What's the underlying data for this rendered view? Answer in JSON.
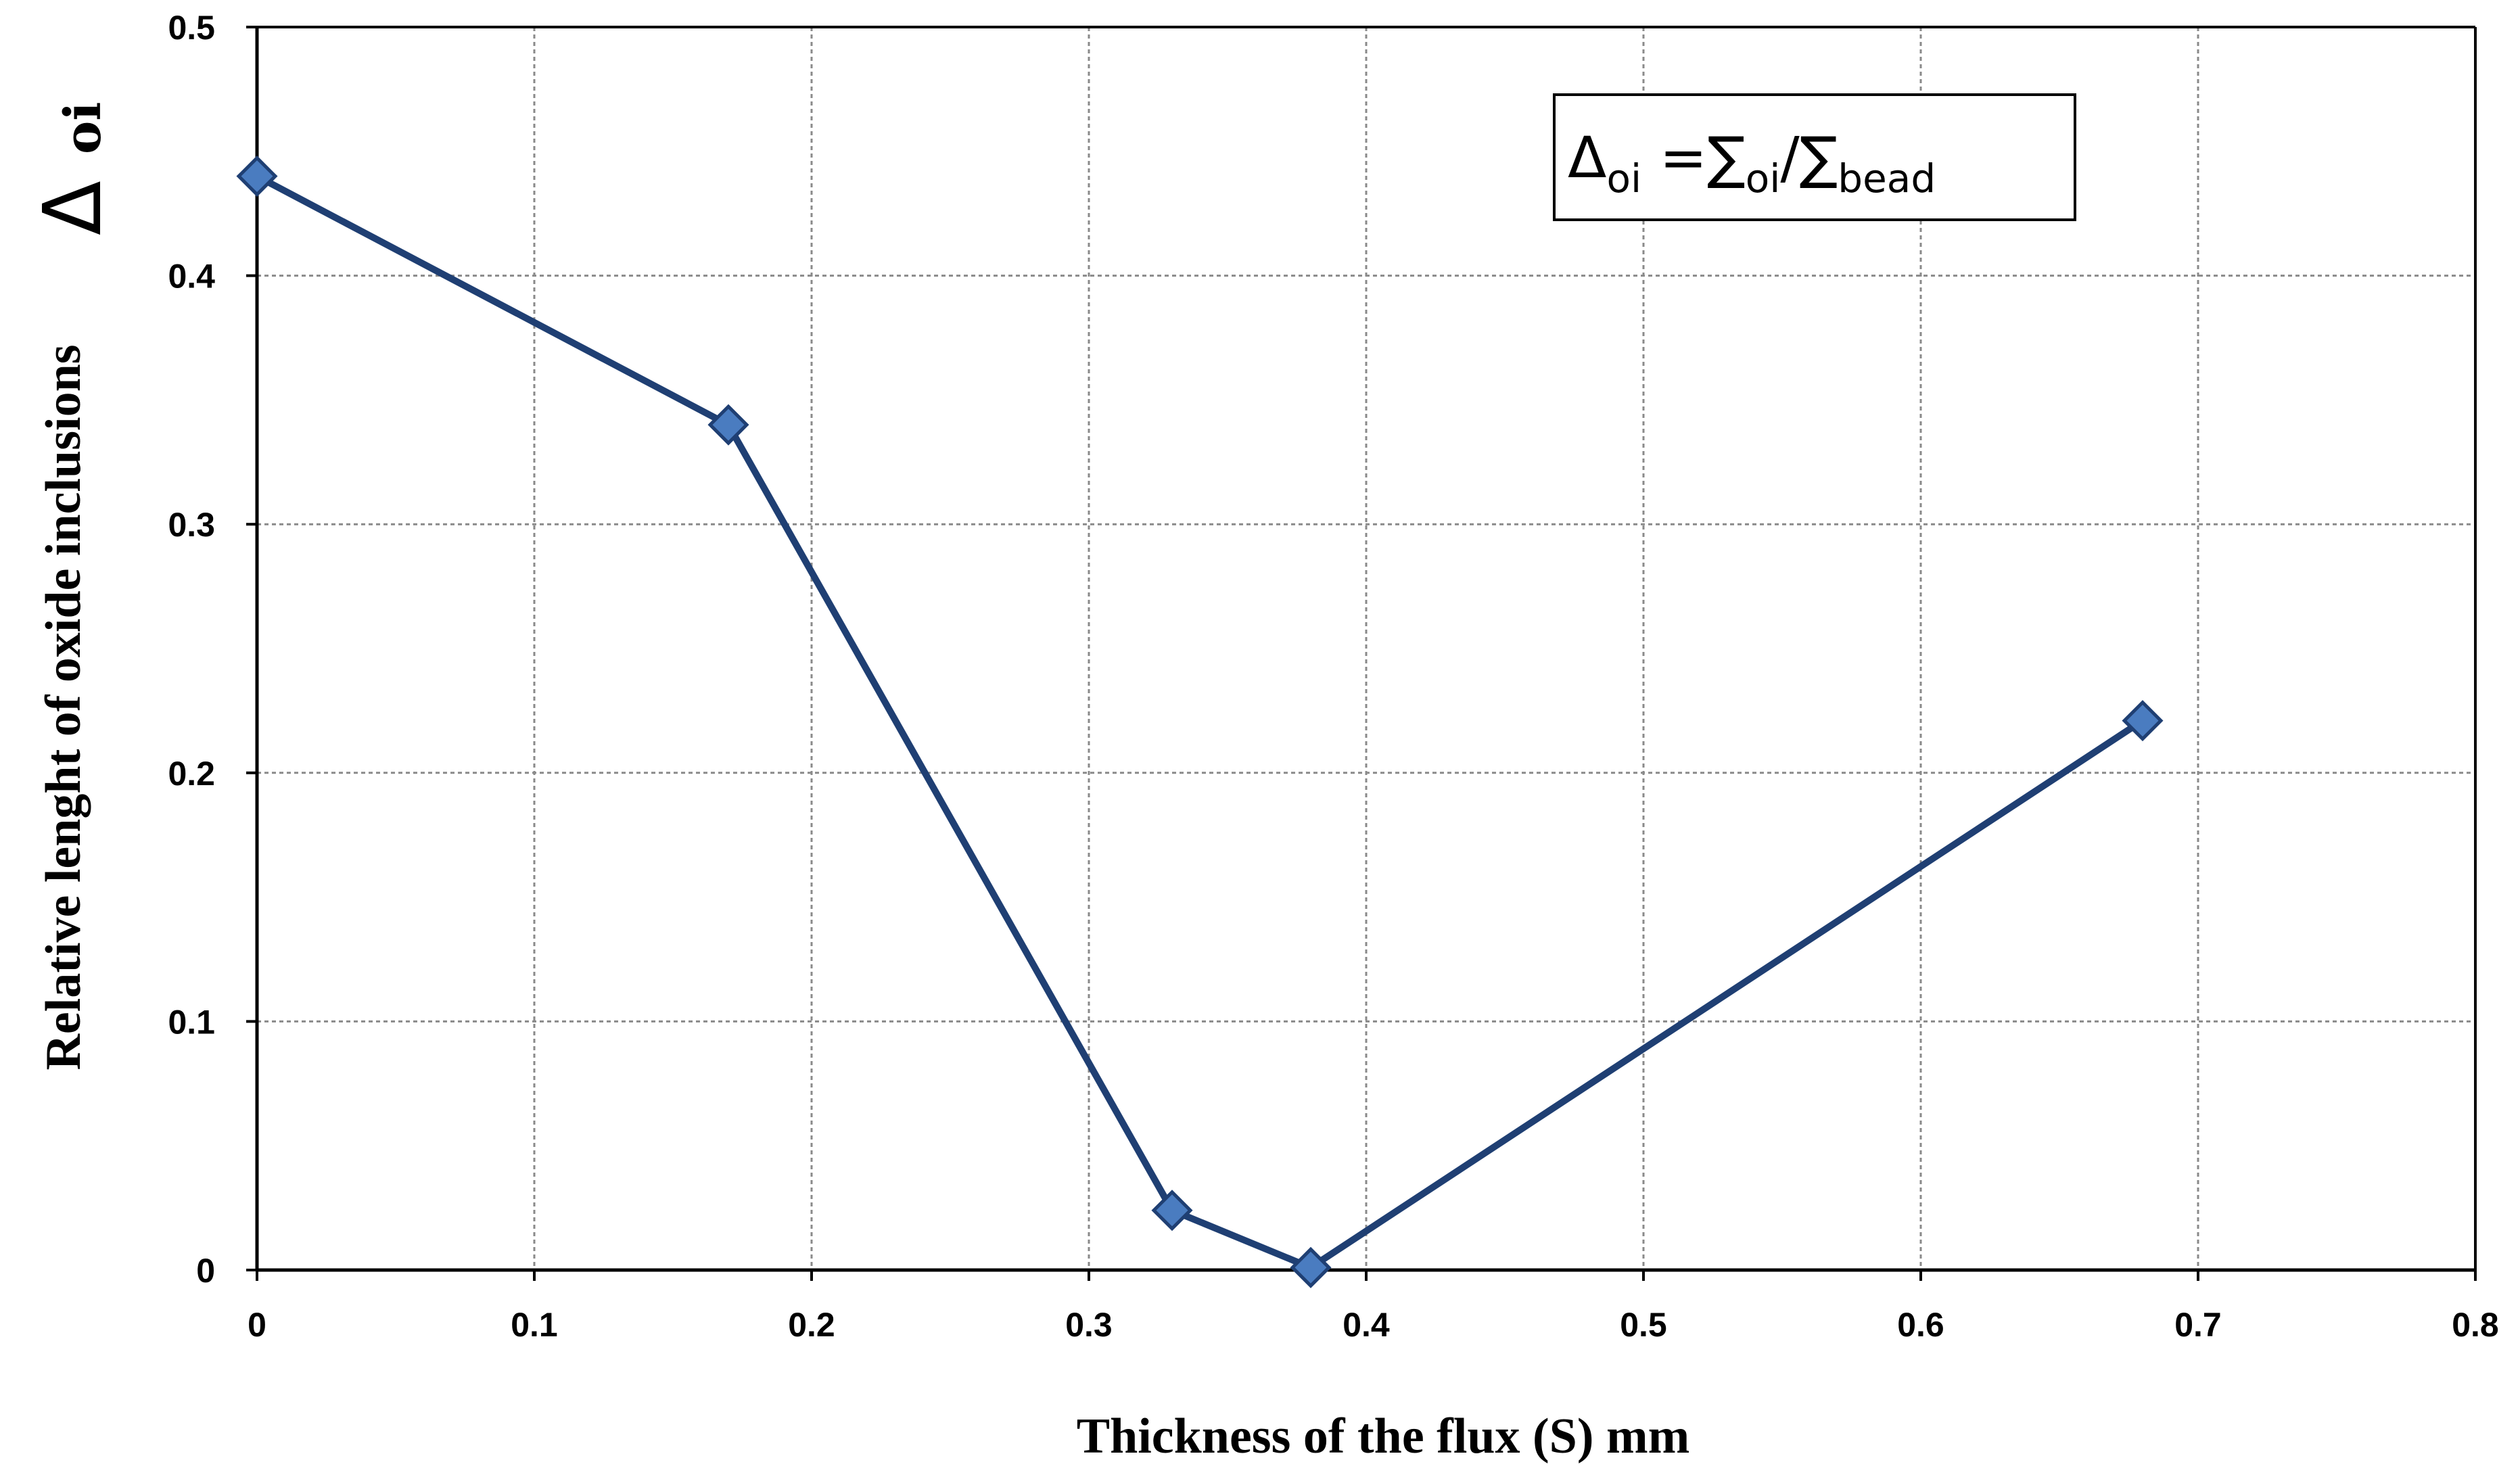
{
  "chart_data": {
    "type": "line",
    "title": "",
    "xlabel": "Thickness of the flux (S) mm",
    "ylabel": {
      "text": "Relative lenght of oxide inclusions",
      "symbol": "Δ",
      "subscript": "oi"
    },
    "xlim": [
      0,
      0.8
    ],
    "ylim": [
      0,
      0.5
    ],
    "x_ticks": [
      "0",
      "0.1",
      "0.2",
      "0.3",
      "0.4",
      "0.5",
      "0.6",
      "0.7",
      "0.8"
    ],
    "y_ticks": [
      "0",
      "0.1",
      "0.2",
      "0.3",
      "0.4",
      "0.5"
    ],
    "grid": true,
    "legend": "none",
    "series": [
      {
        "marker": "diamond",
        "color": "#1f3f73",
        "marker_color": "#4a7cc0",
        "points": [
          {
            "x": 0,
            "y": 0.44
          },
          {
            "x": 0.17,
            "y": 0.34
          },
          {
            "x": 0.33,
            "y": 0.024
          },
          {
            "x": 0.38,
            "y": 0.001
          },
          {
            "x": 0.68,
            "y": 0.221
          }
        ]
      }
    ],
    "annotation": {
      "parts": [
        {
          "text": "Δ",
          "role": "main"
        },
        {
          "text": "oi",
          "role": "sub"
        },
        {
          "text": " =∑",
          "role": "main"
        },
        {
          "text": "oi",
          "role": "sub"
        },
        {
          "text": "/∑",
          "role": "main"
        },
        {
          "text": "bead",
          "role": "sub"
        }
      ],
      "position": "top-right"
    }
  }
}
